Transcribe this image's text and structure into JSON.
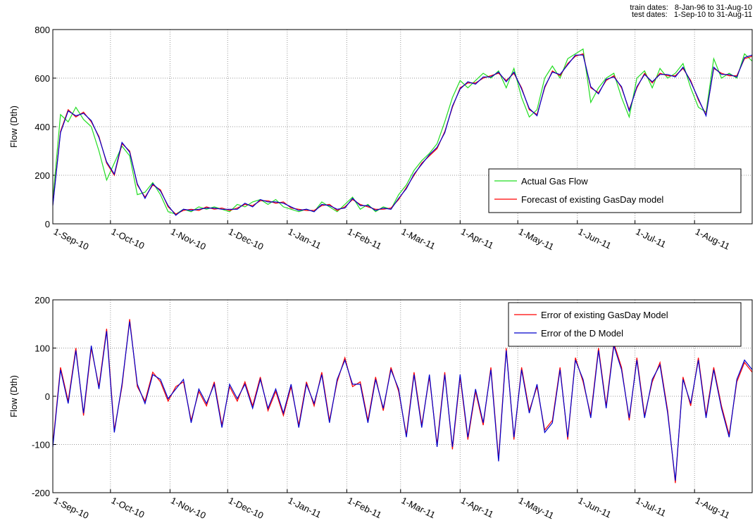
{
  "chart_data": [
    {
      "type": "line",
      "annotations": [
        "train dates:   8-Jan-96 to 31-Aug-10",
        "test dates:   1-Sep-10 to 31-Aug-11"
      ],
      "ylabel": "Flow (Dth)",
      "x": [
        0,
        4,
        8,
        12,
        16,
        20,
        24,
        28,
        32,
        36,
        40,
        44,
        48,
        52,
        56,
        60,
        64,
        68,
        72,
        76,
        80,
        84,
        88,
        92,
        96,
        100,
        104,
        108,
        112,
        116,
        120,
        124,
        128,
        132,
        136,
        140,
        144,
        148,
        152,
        156,
        160,
        164,
        168,
        172,
        176,
        180,
        184,
        188,
        192,
        196,
        200,
        204,
        208,
        212,
        216,
        220,
        224,
        228,
        232,
        236,
        240,
        244,
        248,
        252,
        256,
        260,
        264,
        268,
        272,
        276,
        280,
        284,
        288,
        292,
        296,
        300,
        304,
        308,
        312,
        316,
        320,
        324,
        328,
        332,
        336,
        340,
        344,
        348,
        352,
        356,
        360,
        364
      ],
      "xlim": [
        0,
        364
      ],
      "xticks": [
        {
          "value": 0,
          "label": "1-Sep-10"
        },
        {
          "value": 30,
          "label": "1-Oct-10"
        },
        {
          "value": 61,
          "label": "1-Nov-10"
        },
        {
          "value": 91,
          "label": "1-Dec-10"
        },
        {
          "value": 122,
          "label": "1-Jan-11"
        },
        {
          "value": 153,
          "label": "1-Feb-11"
        },
        {
          "value": 181,
          "label": "1-Mar-11"
        },
        {
          "value": 212,
          "label": "1-Apr-11"
        },
        {
          "value": 242,
          "label": "1-May-11"
        },
        {
          "value": 273,
          "label": "1-Jun-11"
        },
        {
          "value": 303,
          "label": "1-Jul-11"
        },
        {
          "value": 334,
          "label": "1-Aug-11"
        }
      ],
      "ylim": [
        0,
        800
      ],
      "yticks": [
        0,
        200,
        400,
        600,
        800
      ],
      "grid": true,
      "legend": "lower right",
      "series": [
        {
          "name": "Actual Gas Flow",
          "color": "#22dd22",
          "values": [
            100,
            450,
            420,
            480,
            430,
            400,
            300,
            180,
            250,
            320,
            280,
            120,
            130,
            170,
            120,
            50,
            40,
            60,
            50,
            70,
            60,
            70,
            60,
            50,
            80,
            70,
            90,
            100,
            80,
            100,
            70,
            60,
            50,
            60,
            50,
            90,
            70,
            50,
            80,
            110,
            60,
            80,
            50,
            70,
            60,
            120,
            160,
            220,
            260,
            290,
            330,
            420,
            520,
            590,
            560,
            590,
            620,
            600,
            630,
            560,
            640,
            520,
            440,
            470,
            600,
            650,
            600,
            680,
            700,
            720,
            500,
            560,
            600,
            620,
            520,
            440,
            600,
            630,
            560,
            640,
            600,
            620,
            660,
            560,
            480,
            460,
            680,
            600,
            620,
            600,
            700,
            670
          ]
        },
        {
          "name": "Forecast of existing GasDay model",
          "color": "#ff0000",
          "values": [
            80,
            380,
            470,
            440,
            460,
            420,
            360,
            250,
            200,
            330,
            300,
            160,
            110,
            160,
            140,
            70,
            40,
            55,
            60,
            55,
            70,
            60,
            65,
            55,
            65,
            80,
            75,
            95,
            95,
            85,
            90,
            65,
            60,
            55,
            55,
            75,
            80,
            55,
            70,
            100,
            80,
            70,
            60,
            60,
            65,
            100,
            150,
            200,
            250,
            280,
            310,
            380,
            480,
            560,
            580,
            580,
            600,
            610,
            620,
            590,
            620,
            560,
            470,
            450,
            560,
            630,
            610,
            660,
            690,
            700,
            560,
            540,
            590,
            610,
            560,
            470,
            560,
            620,
            580,
            620,
            610,
            610,
            640,
            590,
            510,
            450,
            640,
            620,
            610,
            610,
            680,
            690
          ]
        },
        {
          "color": "#0000cc",
          "values": [
            75,
            375,
            465,
            445,
            455,
            425,
            355,
            255,
            205,
            335,
            295,
            165,
            105,
            165,
            135,
            75,
            35,
            60,
            55,
            60,
            65,
            65,
            60,
            60,
            60,
            85,
            70,
            100,
            90,
            90,
            85,
            70,
            55,
            60,
            50,
            80,
            75,
            60,
            65,
            105,
            75,
            75,
            55,
            65,
            60,
            105,
            145,
            205,
            245,
            285,
            315,
            375,
            485,
            555,
            585,
            575,
            605,
            605,
            625,
            585,
            625,
            555,
            475,
            445,
            565,
            625,
            615,
            655,
            695,
            695,
            565,
            535,
            595,
            605,
            565,
            465,
            565,
            615,
            585,
            615,
            615,
            605,
            645,
            585,
            515,
            445,
            645,
            615,
            615,
            605,
            685,
            695
          ]
        }
      ]
    },
    {
      "type": "line",
      "ylabel": "Flow (Dth)",
      "x": [
        0,
        4,
        8,
        12,
        16,
        20,
        24,
        28,
        32,
        36,
        40,
        44,
        48,
        52,
        56,
        60,
        64,
        68,
        72,
        76,
        80,
        84,
        88,
        92,
        96,
        100,
        104,
        108,
        112,
        116,
        120,
        124,
        128,
        132,
        136,
        140,
        144,
        148,
        152,
        156,
        160,
        164,
        168,
        172,
        176,
        180,
        184,
        188,
        192,
        196,
        200,
        204,
        208,
        212,
        216,
        220,
        224,
        228,
        232,
        236,
        240,
        244,
        248,
        252,
        256,
        260,
        264,
        268,
        272,
        276,
        280,
        284,
        288,
        292,
        296,
        300,
        304,
        308,
        312,
        316,
        320,
        324,
        328,
        332,
        336,
        340,
        344,
        348,
        352,
        356,
        360,
        364
      ],
      "xlim": [
        0,
        364
      ],
      "xticks": [
        {
          "value": 0,
          "label": "1-Sep-10"
        },
        {
          "value": 30,
          "label": "1-Oct-10"
        },
        {
          "value": 61,
          "label": "1-Nov-10"
        },
        {
          "value": 91,
          "label": "1-Dec-10"
        },
        {
          "value": 122,
          "label": "1-Jan-11"
        },
        {
          "value": 153,
          "label": "1-Feb-11"
        },
        {
          "value": 181,
          "label": "1-Mar-11"
        },
        {
          "value": 212,
          "label": "1-Apr-11"
        },
        {
          "value": 242,
          "label": "1-May-11"
        },
        {
          "value": 273,
          "label": "1-Jun-11"
        },
        {
          "value": 303,
          "label": "1-Jul-11"
        },
        {
          "value": 334,
          "label": "1-Aug-11"
        }
      ],
      "ylim": [
        -200,
        200
      ],
      "yticks": [
        -200,
        -100,
        0,
        100,
        200
      ],
      "grid": true,
      "legend": "upper right",
      "series": [
        {
          "name": "Error of existing GasDay Model",
          "color": "#ff0000",
          "values": [
            -100,
            60,
            -10,
            100,
            -40,
            100,
            20,
            140,
            -70,
            20,
            160,
            20,
            -10,
            50,
            30,
            -10,
            20,
            30,
            -50,
            10,
            -20,
            30,
            -60,
            20,
            -10,
            30,
            -20,
            40,
            -30,
            10,
            -40,
            20,
            -60,
            30,
            -20,
            50,
            -50,
            30,
            80,
            20,
            30,
            -50,
            40,
            -30,
            60,
            10,
            -80,
            50,
            -60,
            40,
            -100,
            50,
            -110,
            40,
            -90,
            10,
            -60,
            60,
            -130,
            100,
            -90,
            60,
            -30,
            20,
            -70,
            -50,
            60,
            -90,
            80,
            30,
            -40,
            100,
            -20,
            110,
            60,
            -50,
            80,
            -40,
            30,
            70,
            -30,
            -180,
            40,
            -20,
            80,
            -40,
            60,
            -20,
            -80,
            30,
            70,
            50
          ]
        },
        {
          "name": "Error of the D Model",
          "color": "#0000cc",
          "values": [
            -105,
            55,
            -15,
            95,
            -35,
            105,
            15,
            135,
            -75,
            25,
            155,
            25,
            -15,
            45,
            35,
            -5,
            15,
            35,
            -55,
            15,
            -15,
            25,
            -65,
            25,
            -5,
            25,
            -25,
            35,
            -25,
            15,
            -35,
            25,
            -65,
            25,
            -15,
            45,
            -55,
            35,
            75,
            25,
            25,
            -55,
            35,
            -25,
            55,
            15,
            -85,
            45,
            -65,
            45,
            -105,
            45,
            -105,
            45,
            -85,
            15,
            -55,
            55,
            -135,
            95,
            -85,
            55,
            -35,
            25,
            -75,
            -55,
            55,
            -85,
            75,
            35,
            -45,
            95,
            -25,
            105,
            55,
            -45,
            75,
            -45,
            35,
            65,
            -35,
            -175,
            35,
            -15,
            75,
            -45,
            55,
            -25,
            -85,
            35,
            75,
            55
          ]
        }
      ]
    }
  ]
}
